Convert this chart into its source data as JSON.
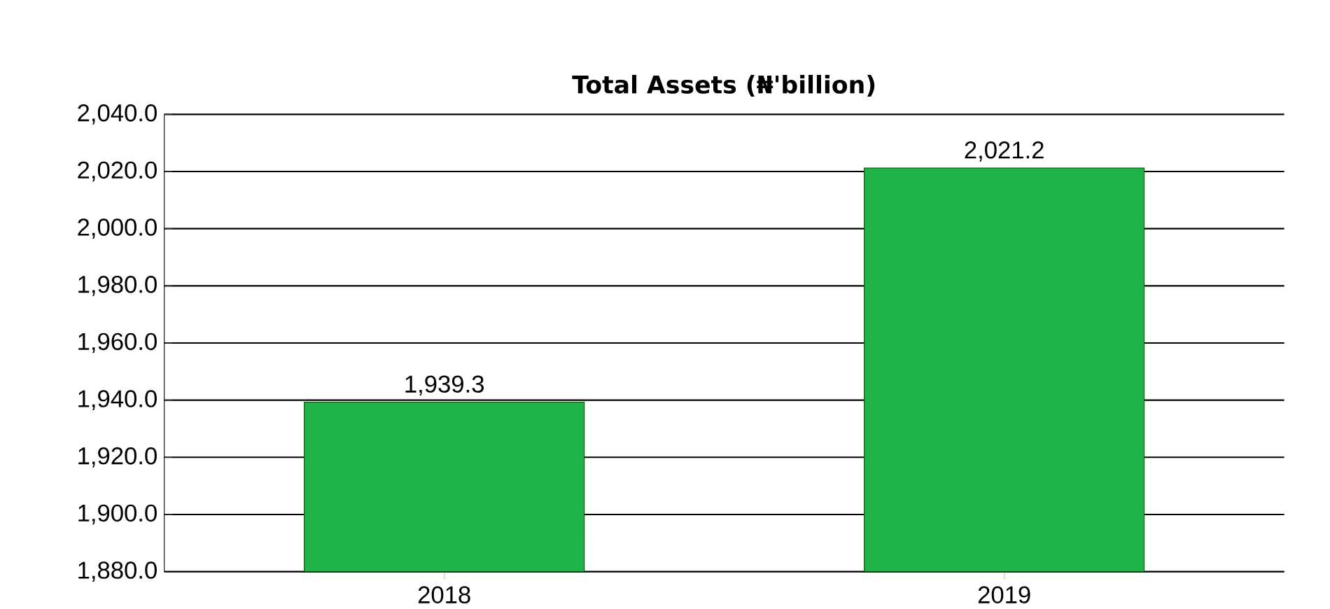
{
  "chart_data": {
    "type": "bar",
    "title": "Total Assets (₦'billion)",
    "categories": [
      "2018",
      "2019"
    ],
    "values": [
      1939.3,
      2021.2
    ],
    "value_labels": [
      "1,939.3",
      "2,021.2"
    ],
    "color": "#1fb34a",
    "ylim": [
      1880,
      2040
    ],
    "yticks": [
      {
        "value": 1880,
        "label": "1,880.0"
      },
      {
        "value": 1900,
        "label": "1,900.0"
      },
      {
        "value": 1920,
        "label": "1,920.0"
      },
      {
        "value": 1940,
        "label": "1,940.0"
      },
      {
        "value": 1960,
        "label": "1,960.0"
      },
      {
        "value": 1980,
        "label": "1,980.0"
      },
      {
        "value": 2000,
        "label": "2,000.0"
      },
      {
        "value": 2020,
        "label": "2,020.0"
      },
      {
        "value": 2040,
        "label": "2,040.0"
      }
    ],
    "grid": "y"
  }
}
